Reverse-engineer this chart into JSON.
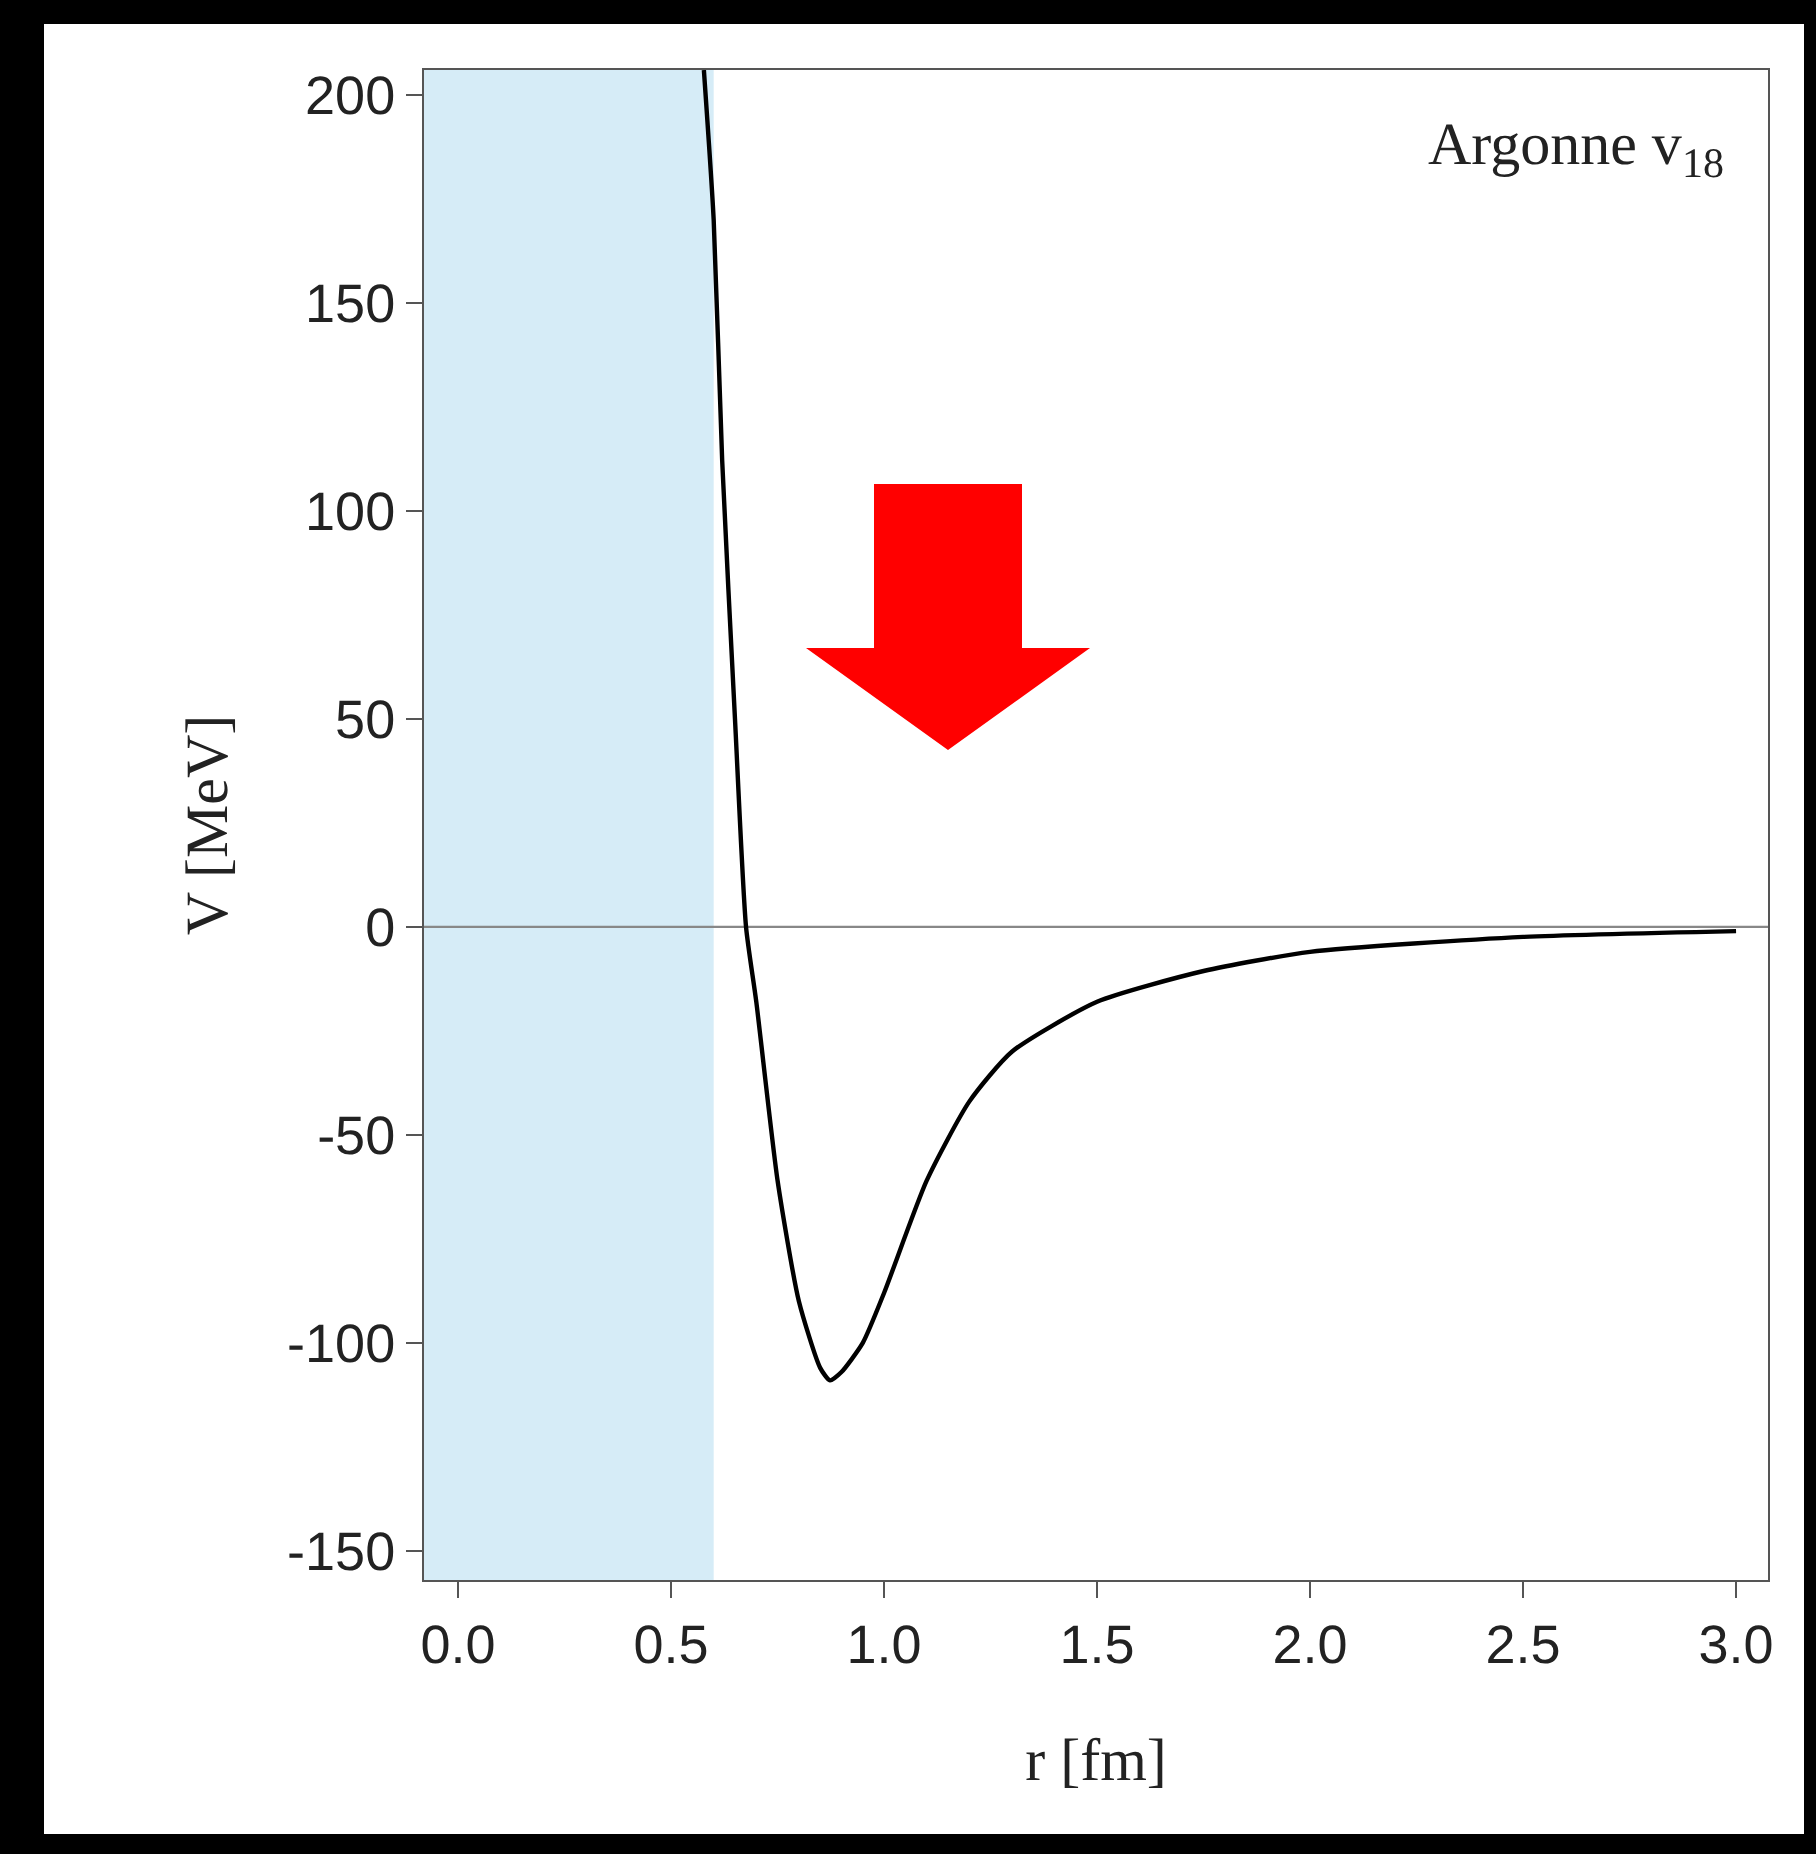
{
  "chart_data": {
    "type": "line",
    "annotations": [
      "Argonne v$_{18}$"
    ],
    "xlabel": "r [fm]",
    "ylabel": "V [MeV]",
    "x": [
      0.577,
      0.6,
      0.62,
      0.65,
      0.676,
      0.7,
      0.75,
      0.8,
      0.85,
      0.873,
      0.9,
      0.95,
      1.0,
      1.1,
      1.2,
      1.3,
      1.5,
      1.75,
      2.0,
      2.5,
      3.0
    ],
    "series": [
      {
        "color": "#000000",
        "values": [
          206,
          170,
          112,
          50,
          0,
          -18,
          -61,
          -90,
          -106,
          -109,
          -107,
          -100,
          -88,
          -61,
          -42,
          -30,
          -18,
          -10.6,
          -6,
          -2.4,
          -1
        ]
      }
    ],
    "xlim": [
      -0.08,
      3.075
    ],
    "ylim": [
      -157,
      206
    ],
    "xticks": [
      {
        "value": 0,
        "label": "0.0"
      },
      {
        "value": 0.5,
        "label": "0.5"
      },
      {
        "value": 1,
        "label": "1.0"
      },
      {
        "value": 1.5,
        "label": "1.5"
      },
      {
        "value": 2,
        "label": "2.0"
      },
      {
        "value": 2.5,
        "label": "2.5"
      },
      {
        "value": 3,
        "label": "3.0"
      }
    ],
    "yticks": [
      -150,
      -100,
      -50,
      0,
      50,
      100,
      150,
      200
    ],
    "ref_lines": [
      {
        "axis": "y",
        "value": 0,
        "color": "#888888"
      }
    ],
    "bands": [
      {
        "axis": "x",
        "from": -0.08,
        "to": 0.6,
        "color": "#d6ecf7"
      }
    ],
    "grid": false,
    "marker": "none",
    "line_style": "solid"
  }
}
